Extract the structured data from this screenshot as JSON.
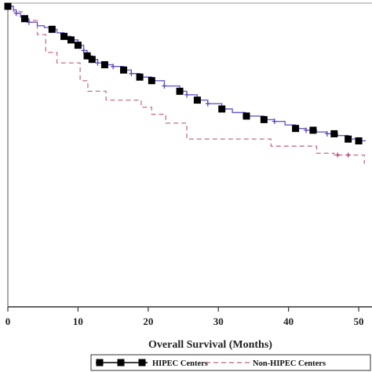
{
  "chart_data": {
    "type": "line",
    "xlabel": "Overall Survival (Months)",
    "ylabel": "",
    "title": "",
    "xlim": [
      0,
      51
    ],
    "ylim": [
      0.2,
      1.0
    ],
    "xticks": [
      0,
      10,
      20,
      30,
      40,
      50
    ],
    "xtick_labels": [
      "0",
      "10",
      "20",
      "30",
      "40",
      "50"
    ],
    "grid": false,
    "legend_position": "bottom",
    "series": [
      {
        "name": "HIPEC Centers",
        "color": "#6a5acd",
        "marker_color": "#000000",
        "line_style": "solid",
        "marker": "square",
        "x": [
          0,
          0.8,
          1.2,
          1.8,
          2.4,
          3.0,
          4.2,
          5.2,
          6.3,
          7.0,
          8.0,
          9.0,
          10.0,
          10.8,
          11.3,
          12.0,
          12.8,
          13.8,
          15.0,
          16.5,
          17.6,
          18.8,
          20.5,
          22.3,
          24.5,
          25.5,
          27.0,
          28.5,
          30.5,
          32.0,
          33.8,
          36.5,
          38.0,
          39.5,
          41.0,
          42.5,
          44.0,
          45.5,
          47.0,
          48.5,
          50.0,
          51.0
        ],
        "y": [
          1.0,
          0.99,
          0.98,
          0.97,
          0.965,
          0.955,
          0.945,
          0.94,
          0.935,
          0.925,
          0.915,
          0.905,
          0.89,
          0.875,
          0.86,
          0.85,
          0.84,
          0.835,
          0.83,
          0.82,
          0.81,
          0.8,
          0.79,
          0.775,
          0.76,
          0.75,
          0.735,
          0.725,
          0.71,
          0.7,
          0.69,
          0.68,
          0.675,
          0.665,
          0.655,
          0.65,
          0.645,
          0.64,
          0.635,
          0.625,
          0.62,
          0.62
        ],
        "marker_x": [
          0,
          2.4,
          6.3,
          8.0,
          9.0,
          10.0,
          11.3,
          12.0,
          13.8,
          16.5,
          18.8,
          20.5,
          24.5,
          27.0,
          30.5,
          34.0,
          36.5,
          41.0,
          43.5,
          46.5,
          48.5,
          50.0
        ],
        "censor_x": [
          1.2,
          3.0,
          10.8,
          12.8,
          15.0,
          17.6,
          22.3,
          25.5,
          28.5,
          33.8,
          38.0,
          42.5,
          45.5
        ]
      },
      {
        "name": "Non-HIPEC Centers",
        "color": "#c97a9a",
        "line_style": "dashed",
        "marker": "none",
        "x": [
          0,
          0.8,
          2.0,
          2.6,
          4.2,
          5.4,
          7.0,
          10.3,
          11.4,
          14.0,
          19.0,
          20.5,
          22.5,
          25.5,
          37.5,
          44.0,
          46.5,
          50.8
        ],
        "y": [
          1.0,
          0.985,
          0.97,
          0.96,
          0.92,
          0.87,
          0.84,
          0.79,
          0.76,
          0.735,
          0.715,
          0.695,
          0.67,
          0.625,
          0.605,
          0.585,
          0.58,
          0.555
        ],
        "censor_x": [
          47.0,
          48.5
        ]
      }
    ]
  }
}
